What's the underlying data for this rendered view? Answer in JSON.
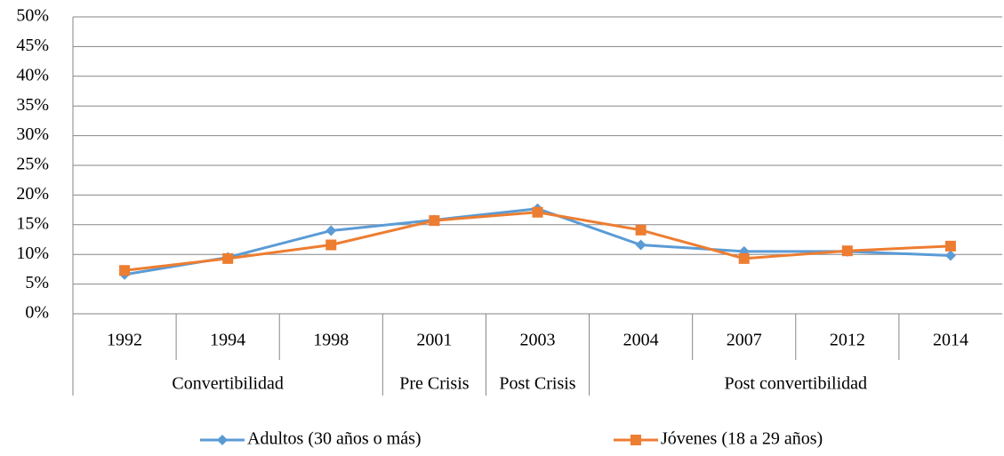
{
  "chart_data": {
    "type": "line",
    "categories": [
      "1992",
      "1994",
      "1998",
      "2001",
      "2003",
      "2004",
      "2007",
      "2012",
      "2014"
    ],
    "groups": [
      "Convertibilidad",
      "Convertibilidad",
      "Convertibilidad",
      "Pre Crisis",
      "Post Crisis",
      "Post convertibilidad",
      "Post convertibilidad",
      "Post convertibilidad",
      "Post convertibilidad"
    ],
    "series": [
      {
        "name": "Adultos (30 años o más)",
        "color": "#5b9bd5",
        "marker": "diamond",
        "values": [
          6.6,
          9.5,
          14.0,
          15.8,
          17.7,
          11.6,
          10.5,
          10.5,
          9.8
        ]
      },
      {
        "name": "Jóvenes (18 a 29 años)",
        "color": "#ed7d31",
        "marker": "square",
        "values": [
          7.3,
          9.3,
          11.6,
          15.7,
          17.1,
          14.1,
          9.3,
          10.6,
          11.4
        ]
      }
    ],
    "ylim": [
      0,
      50
    ],
    "yticks": [
      {
        "value": 0,
        "label": "0%"
      },
      {
        "value": 5,
        "label": "5%"
      },
      {
        "value": 10,
        "label": "10%"
      },
      {
        "value": 15,
        "label": "15%"
      },
      {
        "value": 20,
        "label": "20%"
      },
      {
        "value": 25,
        "label": "25%"
      },
      {
        "value": 30,
        "label": "30%"
      },
      {
        "value": 35,
        "label": "35%"
      },
      {
        "value": 40,
        "label": "40%"
      },
      {
        "value": 45,
        "label": "45%"
      },
      {
        "value": 50,
        "label": "50%"
      }
    ],
    "grid": true,
    "legend": "bottom"
  }
}
